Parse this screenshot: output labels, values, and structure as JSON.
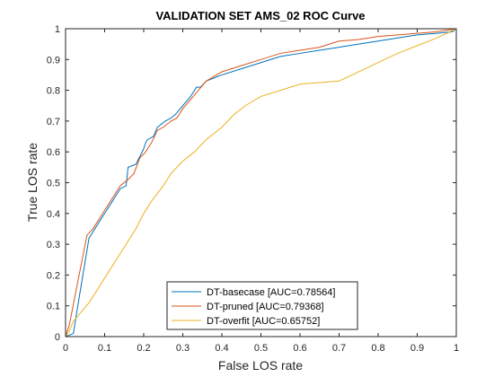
{
  "chart_data": {
    "type": "line",
    "title": "VALIDATION SET AMS_02 ROC Curve",
    "xlabel": "False LOS rate",
    "ylabel": "True LOS rate",
    "xlim": [
      0,
      1
    ],
    "ylim": [
      0,
      1
    ],
    "xticks": [
      "0",
      "0.1",
      "0.2",
      "0.3",
      "0.4",
      "0.5",
      "0.6",
      "0.7",
      "0.8",
      "0.9",
      "1"
    ],
    "yticks": [
      "0",
      "0.1",
      "0.2",
      "0.3",
      "0.4",
      "0.5",
      "0.6",
      "0.7",
      "0.8",
      "0.9",
      "1"
    ],
    "grid": false,
    "legend_position": "bottom-center",
    "series": [
      {
        "name": "DT-basecase [AUC=0.78564]",
        "color": "#0072BD",
        "points": [
          [
            0,
            0
          ],
          [
            0.02,
            0.01
          ],
          [
            0.03,
            0.09
          ],
          [
            0.06,
            0.32
          ],
          [
            0.065,
            0.33
          ],
          [
            0.14,
            0.48
          ],
          [
            0.155,
            0.49
          ],
          [
            0.16,
            0.55
          ],
          [
            0.18,
            0.56
          ],
          [
            0.2,
            0.61
          ],
          [
            0.205,
            0.63
          ],
          [
            0.21,
            0.64
          ],
          [
            0.225,
            0.65
          ],
          [
            0.235,
            0.68
          ],
          [
            0.245,
            0.69
          ],
          [
            0.255,
            0.7
          ],
          [
            0.27,
            0.71
          ],
          [
            0.28,
            0.72
          ],
          [
            0.3,
            0.75
          ],
          [
            0.32,
            0.78
          ],
          [
            0.335,
            0.81
          ],
          [
            0.345,
            0.81
          ],
          [
            0.36,
            0.83
          ],
          [
            0.4,
            0.85
          ],
          [
            0.45,
            0.87
          ],
          [
            0.5,
            0.89
          ],
          [
            0.55,
            0.91
          ],
          [
            0.6,
            0.92
          ],
          [
            0.65,
            0.93
          ],
          [
            0.7,
            0.94
          ],
          [
            0.75,
            0.95
          ],
          [
            0.8,
            0.96
          ],
          [
            0.85,
            0.97
          ],
          [
            0.9,
            0.98
          ],
          [
            0.95,
            0.985
          ],
          [
            0.99,
            0.99
          ],
          [
            1,
            1
          ]
        ]
      },
      {
        "name": "DT-pruned [AUC=0.79368]",
        "color": "#D95319",
        "points": [
          [
            0,
            0
          ],
          [
            0.005,
            0.02
          ],
          [
            0.01,
            0.04
          ],
          [
            0.03,
            0.17
          ],
          [
            0.055,
            0.33
          ],
          [
            0.07,
            0.35
          ],
          [
            0.14,
            0.49
          ],
          [
            0.16,
            0.51
          ],
          [
            0.175,
            0.53
          ],
          [
            0.19,
            0.58
          ],
          [
            0.205,
            0.6
          ],
          [
            0.22,
            0.63
          ],
          [
            0.235,
            0.67
          ],
          [
            0.25,
            0.68
          ],
          [
            0.27,
            0.7
          ],
          [
            0.285,
            0.71
          ],
          [
            0.3,
            0.74
          ],
          [
            0.32,
            0.77
          ],
          [
            0.34,
            0.8
          ],
          [
            0.36,
            0.83
          ],
          [
            0.4,
            0.86
          ],
          [
            0.45,
            0.88
          ],
          [
            0.5,
            0.9
          ],
          [
            0.55,
            0.92
          ],
          [
            0.6,
            0.93
          ],
          [
            0.65,
            0.94
          ],
          [
            0.7,
            0.96
          ],
          [
            0.75,
            0.965
          ],
          [
            0.8,
            0.975
          ],
          [
            0.85,
            0.98
          ],
          [
            0.9,
            0.985
          ],
          [
            0.95,
            0.99
          ],
          [
            1,
            1
          ]
        ]
      },
      {
        "name": "DT-overfit [AUC=0.65752]",
        "color": "#EDB120",
        "points": [
          [
            0,
            0
          ],
          [
            0.01,
            0.02
          ],
          [
            0.02,
            0.05
          ],
          [
            0.06,
            0.11
          ],
          [
            0.1,
            0.19
          ],
          [
            0.14,
            0.27
          ],
          [
            0.18,
            0.35
          ],
          [
            0.2,
            0.4
          ],
          [
            0.22,
            0.44
          ],
          [
            0.25,
            0.49
          ],
          [
            0.27,
            0.53
          ],
          [
            0.3,
            0.57
          ],
          [
            0.33,
            0.6
          ],
          [
            0.36,
            0.64
          ],
          [
            0.4,
            0.68
          ],
          [
            0.43,
            0.72
          ],
          [
            0.46,
            0.75
          ],
          [
            0.5,
            0.78
          ],
          [
            0.55,
            0.8
          ],
          [
            0.6,
            0.82
          ],
          [
            0.65,
            0.825
          ],
          [
            0.7,
            0.83
          ],
          [
            0.75,
            0.86
          ],
          [
            0.8,
            0.89
          ],
          [
            0.85,
            0.92
          ],
          [
            0.9,
            0.945
          ],
          [
            0.95,
            0.97
          ],
          [
            1,
            1
          ]
        ]
      }
    ]
  }
}
